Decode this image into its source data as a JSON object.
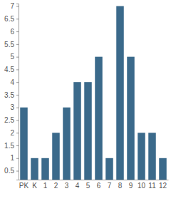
{
  "chart_data": {
    "type": "bar",
    "categories": [
      "PK",
      "K",
      "1",
      "2",
      "3",
      "4",
      "5",
      "6",
      "7",
      "8",
      "9",
      "10",
      "11",
      "12"
    ],
    "values": [
      3,
      1,
      1,
      2,
      3,
      4,
      4,
      5,
      1,
      7,
      5,
      2,
      2,
      1
    ],
    "color": "#3b6a8b",
    "ylim": [
      0.15,
      7.1
    ],
    "yticks": [
      0.5,
      1,
      1.5,
      2,
      2.5,
      3,
      3.5,
      4,
      4.5,
      5,
      5.5,
      6,
      6.5,
      7
    ],
    "grid": false
  }
}
